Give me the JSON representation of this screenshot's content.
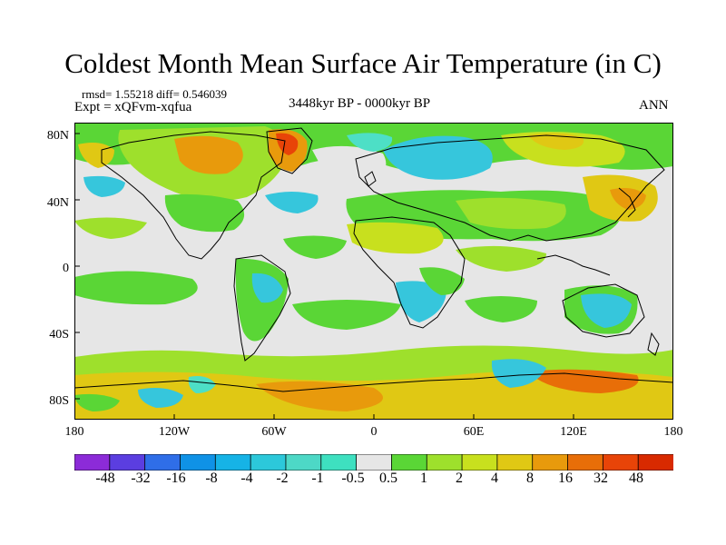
{
  "title": "Coldest Month Mean Surface Air Temperature (in C)",
  "stats_line": "rmsd= 1.55218 diff= 0.546039",
  "experiment_line": "Expt = xQFvm-xqfua",
  "period_line": "3448kyr BP - 0000kyr BP",
  "season_label": "ANN",
  "y_ticks": [
    "80N",
    "40N",
    "0",
    "40S",
    "80S"
  ],
  "x_ticks": [
    "180",
    "120W",
    "60W",
    "0",
    "60E",
    "120E",
    "180"
  ],
  "colorbar": {
    "labels": [
      "-48",
      "-32",
      "-16",
      "-8",
      "-4",
      "-2",
      "-1",
      "-0.5",
      "0.5",
      "1",
      "2",
      "4",
      "8",
      "16",
      "32",
      "48"
    ],
    "colors": [
      "#8c2bd8",
      "#5b3ee0",
      "#2f6ee8",
      "#0f92e6",
      "#16b3e6",
      "#2cc8da",
      "#4dd8c6",
      "#3ee0c0",
      "#e6e6e6",
      "#5ad636",
      "#9ee02c",
      "#c8e01e",
      "#e0c814",
      "#e89a0c",
      "#e86e08",
      "#e84408",
      "#d82a00"
    ]
  },
  "palette": {
    "neutral": "#e6e6e6",
    "cyan": "#36c6dc",
    "light_cyan": "#4ddfc6",
    "green": "#5ad636",
    "lime": "#9ee02c",
    "yellow_green": "#c8e01e",
    "amber": "#e0c814",
    "orange": "#e89a0c",
    "dark_orange": "#e86e08",
    "red": "#e84408",
    "coast": "#000000"
  }
}
